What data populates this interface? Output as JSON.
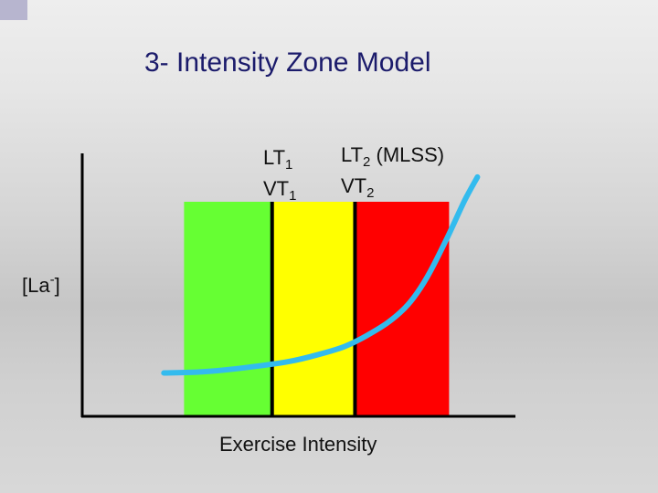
{
  "title": "3- Intensity Zone Model",
  "markers": {
    "t1": {
      "lt": "LT",
      "vt": "VT",
      "sub": "1"
    },
    "t2": {
      "lt": "LT",
      "vt": "VT",
      "sub": "2",
      "extra": " (MLSS)"
    }
  },
  "chart_data": {
    "type": "area",
    "title": "3- Intensity Zone Model",
    "xlabel": "Exercise Intensity",
    "ylabel": "[La-]",
    "ylabel_parts": {
      "base": "[La",
      "sup": "-",
      "tail": "]"
    },
    "xlim": [
      0,
      100
    ],
    "ylim": [
      0,
      100
    ],
    "tick_labels": false,
    "grid": false,
    "zones": [
      {
        "x_start": 23.7,
        "x_end": 44.2,
        "color": "#66ff33"
      },
      {
        "x_start": 44.2,
        "x_end": 63.5,
        "color": "#ffff00"
      },
      {
        "x_start": 63.5,
        "x_end": 85.4,
        "color": "#ff0000"
      }
    ],
    "boundaries": [
      44.2,
      63.5
    ],
    "series": [
      {
        "color": "#33bbee",
        "x": [
          19,
          28,
          38,
          48,
          55,
          61,
          66,
          71,
          75,
          78,
          81,
          85,
          89,
          92
        ],
        "y": [
          16.5,
          16.9,
          18.5,
          20.8,
          23.5,
          26.5,
          30.5,
          35.5,
          41,
          47,
          55,
          68,
          82,
          91
        ]
      }
    ]
  }
}
